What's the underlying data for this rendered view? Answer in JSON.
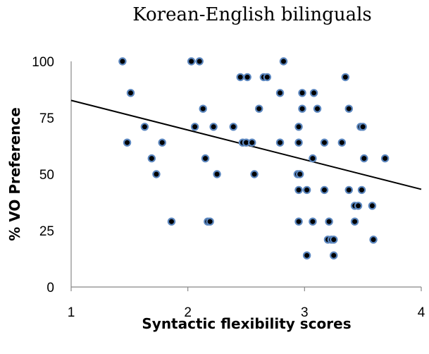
{
  "chart_data": {
    "type": "scatter",
    "title": "Korean-English bilinguals",
    "xlabel": "Syntactic flexibility scores",
    "ylabel": "% VO Preference",
    "xlim": [
      1,
      4
    ],
    "ylim": [
      0,
      100
    ],
    "x_ticks": [
      "1",
      "2",
      "3",
      "4"
    ],
    "y_ticks": [
      "0",
      "25",
      "50",
      "75",
      "100"
    ],
    "grid": false,
    "legend": "none",
    "colors": {
      "marker_fill": "#000000",
      "marker_edge": "#5b86be",
      "trendline": "#000000",
      "axis": "#888888"
    },
    "trendline": {
      "x": [
        1,
        4
      ],
      "y": [
        82.7,
        43.3
      ]
    },
    "points": [
      {
        "x": 1.44,
        "y": 100
      },
      {
        "x": 2.03,
        "y": 100
      },
      {
        "x": 2.1,
        "y": 100
      },
      {
        "x": 2.82,
        "y": 100
      },
      {
        "x": 2.45,
        "y": 93
      },
      {
        "x": 2.51,
        "y": 93
      },
      {
        "x": 2.65,
        "y": 93
      },
      {
        "x": 2.68,
        "y": 93
      },
      {
        "x": 3.35,
        "y": 93
      },
      {
        "x": 1.51,
        "y": 86
      },
      {
        "x": 2.79,
        "y": 86
      },
      {
        "x": 2.98,
        "y": 86
      },
      {
        "x": 3.08,
        "y": 86
      },
      {
        "x": 2.13,
        "y": 79
      },
      {
        "x": 2.61,
        "y": 79
      },
      {
        "x": 2.98,
        "y": 79
      },
      {
        "x": 3.11,
        "y": 79
      },
      {
        "x": 3.38,
        "y": 79
      },
      {
        "x": 1.63,
        "y": 71
      },
      {
        "x": 2.06,
        "y": 71
      },
      {
        "x": 2.22,
        "y": 71
      },
      {
        "x": 2.39,
        "y": 71
      },
      {
        "x": 2.95,
        "y": 71
      },
      {
        "x": 3.48,
        "y": 71
      },
      {
        "x": 3.5,
        "y": 71
      },
      {
        "x": 1.48,
        "y": 64
      },
      {
        "x": 1.78,
        "y": 64
      },
      {
        "x": 2.47,
        "y": 64
      },
      {
        "x": 2.5,
        "y": 64
      },
      {
        "x": 2.55,
        "y": 64
      },
      {
        "x": 2.79,
        "y": 64
      },
      {
        "x": 2.95,
        "y": 64
      },
      {
        "x": 3.17,
        "y": 64
      },
      {
        "x": 3.32,
        "y": 64
      },
      {
        "x": 1.69,
        "y": 57
      },
      {
        "x": 2.15,
        "y": 57
      },
      {
        "x": 3.07,
        "y": 57
      },
      {
        "x": 3.51,
        "y": 57
      },
      {
        "x": 3.69,
        "y": 57
      },
      {
        "x": 1.73,
        "y": 50
      },
      {
        "x": 2.25,
        "y": 50
      },
      {
        "x": 2.57,
        "y": 50
      },
      {
        "x": 2.94,
        "y": 50
      },
      {
        "x": 2.96,
        "y": 50
      },
      {
        "x": 2.95,
        "y": 43
      },
      {
        "x": 3.02,
        "y": 43
      },
      {
        "x": 3.17,
        "y": 43
      },
      {
        "x": 3.38,
        "y": 43
      },
      {
        "x": 3.49,
        "y": 43
      },
      {
        "x": 3.43,
        "y": 36
      },
      {
        "x": 3.46,
        "y": 36
      },
      {
        "x": 3.58,
        "y": 36
      },
      {
        "x": 1.86,
        "y": 29
      },
      {
        "x": 2.17,
        "y": 29
      },
      {
        "x": 2.19,
        "y": 29
      },
      {
        "x": 2.95,
        "y": 29
      },
      {
        "x": 3.07,
        "y": 29
      },
      {
        "x": 3.21,
        "y": 29
      },
      {
        "x": 3.43,
        "y": 29
      },
      {
        "x": 3.2,
        "y": 21
      },
      {
        "x": 3.23,
        "y": 21
      },
      {
        "x": 3.25,
        "y": 21
      },
      {
        "x": 3.59,
        "y": 21
      },
      {
        "x": 3.02,
        "y": 14
      },
      {
        "x": 3.25,
        "y": 14
      }
    ]
  }
}
